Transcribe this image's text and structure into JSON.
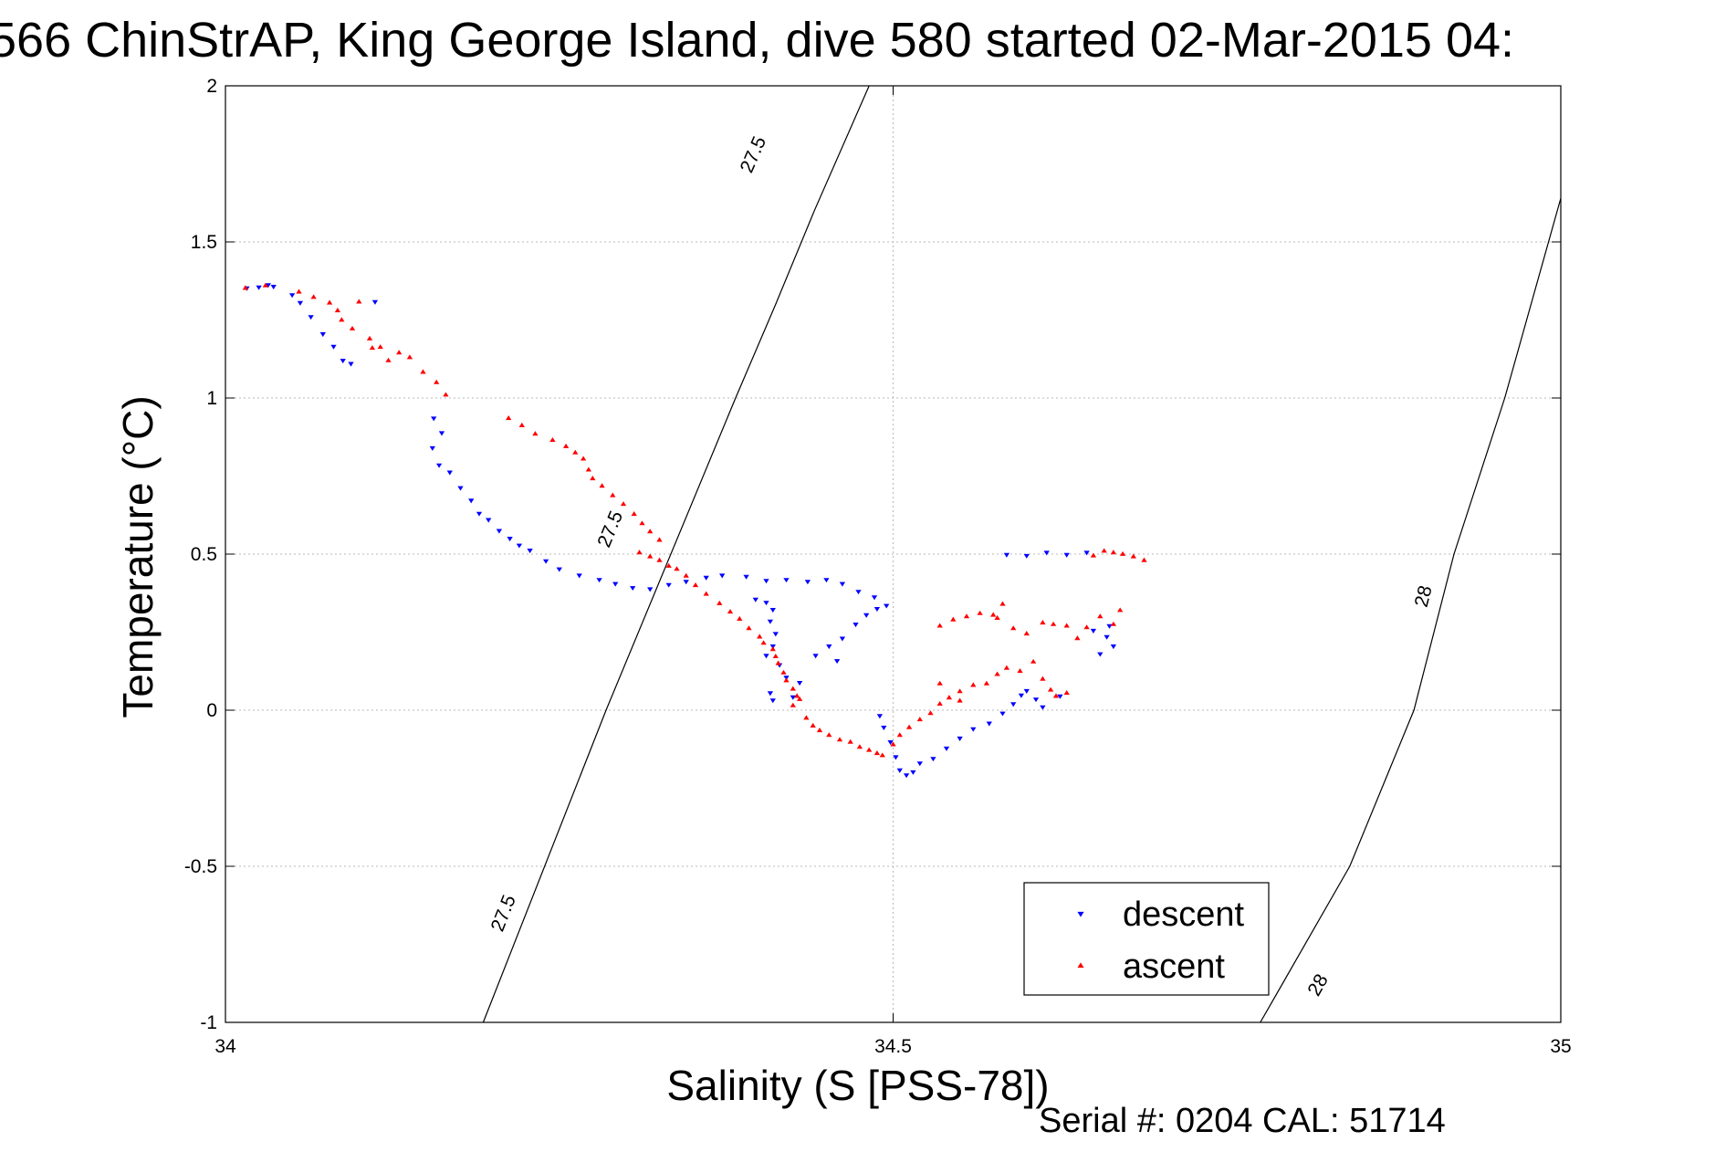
{
  "chart_data": {
    "type": "scatter",
    "title": "566 ChinStrAP, King George Island, dive 580 started 02-Mar-2015 04:",
    "xlabel": "Salinity (S [PSS-78])",
    "ylabel": "Temperature (°C)",
    "xlim": [
      34,
      35
    ],
    "ylim": [
      -1,
      2
    ],
    "xticks": [
      34,
      34.5,
      35
    ],
    "xtick_labels": [
      "34",
      "34.5",
      "35"
    ],
    "yticks": [
      -1,
      -0.5,
      0,
      0.5,
      1,
      1.5,
      2
    ],
    "ytick_labels": [
      "-1",
      "-0.5",
      "0",
      "0.5",
      "1",
      "1.5",
      "2"
    ],
    "grid": true,
    "legend_position": "bottom-right",
    "series": [
      {
        "name": "descent",
        "color": "#0000ff",
        "marker": "triangle-down",
        "points": [
          [
            34.016,
            1.352
          ],
          [
            34.025,
            1.355
          ],
          [
            34.032,
            1.362
          ],
          [
            34.036,
            1.357
          ],
          [
            34.05,
            1.33
          ],
          [
            34.056,
            1.305
          ],
          [
            34.064,
            1.26
          ],
          [
            34.073,
            1.205
          ],
          [
            34.081,
            1.165
          ],
          [
            34.088,
            1.12
          ],
          [
            34.094,
            1.11
          ],
          [
            34.112,
            1.308
          ],
          [
            34.156,
            0.935
          ],
          [
            34.162,
            0.888
          ],
          [
            34.155,
            0.84
          ],
          [
            34.16,
            0.785
          ],
          [
            34.168,
            0.762
          ],
          [
            34.176,
            0.712
          ],
          [
            34.184,
            0.672
          ],
          [
            34.19,
            0.63
          ],
          [
            34.197,
            0.61
          ],
          [
            34.205,
            0.575
          ],
          [
            34.213,
            0.55
          ],
          [
            34.22,
            0.528
          ],
          [
            34.228,
            0.512
          ],
          [
            34.24,
            0.478
          ],
          [
            34.25,
            0.452
          ],
          [
            34.265,
            0.432
          ],
          [
            34.28,
            0.418
          ],
          [
            34.292,
            0.405
          ],
          [
            34.305,
            0.392
          ],
          [
            34.318,
            0.388
          ],
          [
            34.332,
            0.402
          ],
          [
            34.345,
            0.412
          ],
          [
            34.36,
            0.425
          ],
          [
            34.372,
            0.432
          ],
          [
            34.39,
            0.428
          ],
          [
            34.405,
            0.415
          ],
          [
            34.42,
            0.418
          ],
          [
            34.436,
            0.412
          ],
          [
            34.45,
            0.418
          ],
          [
            34.462,
            0.405
          ],
          [
            34.474,
            0.38
          ],
          [
            34.486,
            0.362
          ],
          [
            34.397,
            0.355
          ],
          [
            34.405,
            0.345
          ],
          [
            34.41,
            0.322
          ],
          [
            34.408,
            0.285
          ],
          [
            34.412,
            0.245
          ],
          [
            34.41,
            0.205
          ],
          [
            34.405,
            0.175
          ],
          [
            34.415,
            0.145
          ],
          [
            34.42,
            0.105
          ],
          [
            34.408,
            0.055
          ],
          [
            34.41,
            0.032
          ],
          [
            34.425,
            0.042
          ],
          [
            34.43,
            0.088
          ],
          [
            34.442,
            0.175
          ],
          [
            34.452,
            0.205
          ],
          [
            34.458,
            0.158
          ],
          [
            34.462,
            0.23
          ],
          [
            34.472,
            0.275
          ],
          [
            34.48,
            0.305
          ],
          [
            34.488,
            0.325
          ],
          [
            34.495,
            0.335
          ],
          [
            34.49,
            -0.018
          ],
          [
            34.493,
            -0.055
          ],
          [
            34.498,
            -0.102
          ],
          [
            34.502,
            -0.15
          ],
          [
            34.505,
            -0.192
          ],
          [
            34.51,
            -0.208
          ],
          [
            34.515,
            -0.198
          ],
          [
            34.52,
            -0.17
          ],
          [
            34.53,
            -0.155
          ],
          [
            34.54,
            -0.122
          ],
          [
            34.55,
            -0.09
          ],
          [
            34.56,
            -0.06
          ],
          [
            34.572,
            -0.042
          ],
          [
            34.582,
            -0.01
          ],
          [
            34.59,
            0.02
          ],
          [
            34.596,
            0.048
          ],
          [
            34.6,
            0.062
          ],
          [
            34.607,
            0.035
          ],
          [
            34.612,
            0.01
          ],
          [
            34.625,
            0.045
          ],
          [
            34.585,
            0.498
          ],
          [
            34.6,
            0.495
          ],
          [
            34.615,
            0.505
          ],
          [
            34.63,
            0.498
          ],
          [
            34.645,
            0.505
          ],
          [
            34.65,
            0.255
          ],
          [
            34.66,
            0.235
          ],
          [
            34.665,
            0.205
          ],
          [
            34.655,
            0.18
          ],
          [
            34.662,
            0.27
          ]
        ]
      },
      {
        "name": "ascent",
        "color": "#ff0000",
        "marker": "triangle-up",
        "points": [
          [
            34.015,
            1.352
          ],
          [
            34.03,
            1.36
          ],
          [
            34.055,
            1.34
          ],
          [
            34.066,
            1.323
          ],
          [
            34.078,
            1.305
          ],
          [
            34.084,
            1.28
          ],
          [
            34.087,
            1.25
          ],
          [
            34.095,
            1.222
          ],
          [
            34.1,
            1.308
          ],
          [
            34.108,
            1.19
          ],
          [
            34.116,
            1.163
          ],
          [
            34.122,
            1.12
          ],
          [
            34.11,
            1.16
          ],
          [
            34.13,
            1.145
          ],
          [
            34.138,
            1.13
          ],
          [
            34.148,
            1.083
          ],
          [
            34.158,
            1.05
          ],
          [
            34.165,
            1.01
          ],
          [
            34.212,
            0.935
          ],
          [
            34.222,
            0.912
          ],
          [
            34.232,
            0.885
          ],
          [
            34.245,
            0.865
          ],
          [
            34.255,
            0.845
          ],
          [
            34.262,
            0.825
          ],
          [
            34.268,
            0.805
          ],
          [
            34.272,
            0.77
          ],
          [
            34.275,
            0.742
          ],
          [
            34.282,
            0.718
          ],
          [
            34.29,
            0.688
          ],
          [
            34.298,
            0.66
          ],
          [
            34.306,
            0.628
          ],
          [
            34.312,
            0.598
          ],
          [
            34.318,
            0.572
          ],
          [
            34.325,
            0.545
          ],
          [
            34.31,
            0.505
          ],
          [
            34.318,
            0.492
          ],
          [
            34.325,
            0.48
          ],
          [
            34.332,
            0.462
          ],
          [
            34.338,
            0.452
          ],
          [
            34.345,
            0.43
          ],
          [
            34.352,
            0.4
          ],
          [
            34.36,
            0.372
          ],
          [
            34.37,
            0.342
          ],
          [
            34.378,
            0.315
          ],
          [
            34.385,
            0.292
          ],
          [
            34.392,
            0.262
          ],
          [
            34.4,
            0.235
          ],
          [
            34.403,
            0.215
          ],
          [
            34.41,
            0.195
          ],
          [
            34.412,
            0.172
          ],
          [
            34.414,
            0.15
          ],
          [
            34.418,
            0.12
          ],
          [
            34.42,
            0.095
          ],
          [
            34.425,
            0.068
          ],
          [
            34.428,
            0.045
          ],
          [
            34.43,
            0.035
          ],
          [
            34.425,
            0.015
          ],
          [
            34.435,
            -0.025
          ],
          [
            34.44,
            -0.05
          ],
          [
            34.445,
            -0.065
          ],
          [
            34.452,
            -0.08
          ],
          [
            34.46,
            -0.095
          ],
          [
            34.468,
            -0.102
          ],
          [
            34.475,
            -0.118
          ],
          [
            34.482,
            -0.128
          ],
          [
            34.488,
            -0.138
          ],
          [
            34.492,
            -0.145
          ],
          [
            34.5,
            -0.11
          ],
          [
            34.505,
            -0.08
          ],
          [
            34.512,
            -0.055
          ],
          [
            34.52,
            -0.03
          ],
          [
            34.528,
            -0.01
          ],
          [
            34.535,
            0.02
          ],
          [
            34.542,
            0.04
          ],
          [
            34.55,
            0.06
          ],
          [
            34.56,
            0.08
          ],
          [
            34.57,
            0.085
          ],
          [
            34.578,
            0.115
          ],
          [
            34.585,
            0.135
          ],
          [
            34.595,
            0.125
          ],
          [
            34.605,
            0.155
          ],
          [
            34.612,
            0.1
          ],
          [
            34.618,
            0.065
          ],
          [
            34.622,
            0.045
          ],
          [
            34.63,
            0.055
          ],
          [
            34.535,
            0.27
          ],
          [
            34.545,
            0.29
          ],
          [
            34.555,
            0.3
          ],
          [
            34.565,
            0.31
          ],
          [
            34.575,
            0.305
          ],
          [
            34.582,
            0.34
          ],
          [
            34.578,
            0.295
          ],
          [
            34.59,
            0.262
          ],
          [
            34.6,
            0.245
          ],
          [
            34.612,
            0.28
          ],
          [
            34.62,
            0.275
          ],
          [
            34.63,
            0.27
          ],
          [
            34.638,
            0.23
          ],
          [
            34.645,
            0.265
          ],
          [
            34.655,
            0.3
          ],
          [
            34.665,
            0.275
          ],
          [
            34.65,
            0.495
          ],
          [
            34.658,
            0.51
          ],
          [
            34.665,
            0.505
          ],
          [
            34.672,
            0.5
          ],
          [
            34.68,
            0.492
          ],
          [
            34.688,
            0.48
          ],
          [
            34.67,
            0.32
          ],
          [
            34.535,
            0.085
          ],
          [
            34.55,
            0.03
          ]
        ]
      }
    ],
    "contours": [
      {
        "label": "27.5",
        "points": [
          [
            34.193,
            -1
          ],
          [
            34.285,
            0
          ],
          [
            34.382,
            1
          ],
          [
            34.412,
            1.3
          ],
          [
            34.441,
            1.6
          ],
          [
            34.482,
            2
          ]
        ],
        "label_positions": [
          [
            34.208,
            -0.65
          ],
          [
            34.288,
            0.58
          ],
          [
            34.395,
            1.78
          ]
        ]
      },
      {
        "label": "28",
        "points": [
          [
            34.775,
            -1
          ],
          [
            34.842,
            -0.5
          ],
          [
            34.89,
            0
          ],
          [
            34.92,
            0.5
          ],
          [
            34.958,
            1
          ],
          [
            35,
            1.64
          ]
        ],
        "label_positions": [
          [
            34.818,
            -0.88
          ],
          [
            34.897,
            0.365
          ]
        ]
      }
    ]
  },
  "footer": {
    "serial_text": "Serial #: 0204  CAL: 51714"
  }
}
